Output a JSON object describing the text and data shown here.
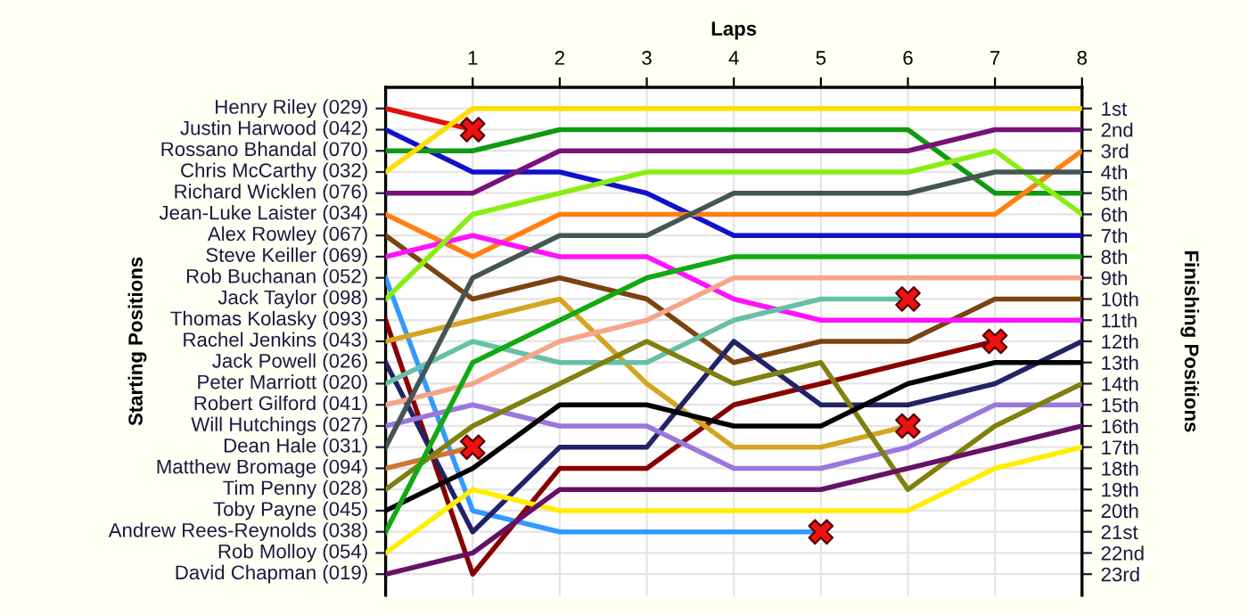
{
  "chart_data": {
    "type": "line",
    "xlabel": "Laps",
    "ylabel": "Finishing Positions",
    "x": [
      0,
      1,
      2,
      3,
      4,
      5,
      6,
      7,
      8
    ],
    "xlim": [
      0,
      8
    ],
    "xticks": [
      1,
      2,
      3,
      4,
      5,
      6,
      7,
      8
    ],
    "ylim": [
      24,
      0
    ],
    "yticks": [
      {
        "value": 1,
        "label": "1st"
      },
      {
        "value": 2,
        "label": "2nd"
      },
      {
        "value": 3,
        "label": "3rd"
      },
      {
        "value": 4,
        "label": "4th"
      },
      {
        "value": 5,
        "label": "5th"
      },
      {
        "value": 6,
        "label": "6th"
      },
      {
        "value": 7,
        "label": "7th"
      },
      {
        "value": 8,
        "label": "8th"
      },
      {
        "value": 9,
        "label": "9th"
      },
      {
        "value": 10,
        "label": "10th"
      },
      {
        "value": 11,
        "label": "11th"
      },
      {
        "value": 12,
        "label": "12th"
      },
      {
        "value": 13,
        "label": "13th"
      },
      {
        "value": 14,
        "label": "14th"
      },
      {
        "value": 15,
        "label": "15th"
      },
      {
        "value": 16,
        "label": "16th"
      },
      {
        "value": 17,
        "label": "17th"
      },
      {
        "value": 18,
        "label": "18th"
      },
      {
        "value": 19,
        "label": "19th"
      },
      {
        "value": 20,
        "label": "20th"
      },
      {
        "value": 21,
        "label": "21st"
      },
      {
        "value": 22,
        "label": "22nd"
      },
      {
        "value": 23,
        "label": "23rd"
      }
    ],
    "annotations": [
      "Starting Positions"
    ],
    "grid": true,
    "series": [
      {
        "name": "Henry Riley (029)",
        "color": "#dd1111",
        "values": [
          1,
          2,
          null,
          null,
          null,
          null,
          null,
          null,
          null
        ]
      },
      {
        "name": "Justin Harwood (042)",
        "color": "#1111cc",
        "values": [
          2,
          4,
          4,
          5,
          7,
          7,
          7,
          7,
          7
        ]
      },
      {
        "name": "Rossano Bhandal (070)",
        "color": "#119911",
        "values": [
          3,
          3,
          2,
          2,
          2,
          2,
          2,
          5,
          5
        ]
      },
      {
        "name": "Chris McCarthy (032)",
        "color": "#ffdd00",
        "values": [
          4,
          1,
          1,
          1,
          1,
          1,
          1,
          1,
          1
        ]
      },
      {
        "name": "Richard Wicklen (076)",
        "color": "#7a117a",
        "values": [
          5,
          5,
          3,
          3,
          3,
          3,
          3,
          2,
          2
        ]
      },
      {
        "name": "Jean-Luke Laister (034)",
        "color": "#ff8011",
        "values": [
          6,
          8,
          6,
          6,
          6,
          6,
          6,
          6,
          3
        ]
      },
      {
        "name": "Alex Rowley (067)",
        "color": "#7a4411",
        "values": [
          7,
          10,
          9,
          10,
          13,
          12,
          12,
          10,
          10
        ]
      },
      {
        "name": "Steve Keiller (069)",
        "color": "#ff11ff",
        "values": [
          8,
          7,
          8,
          8,
          10,
          11,
          11,
          11,
          11
        ]
      },
      {
        "name": "Rob Buchanan (052)",
        "color": "#3399ff",
        "values": [
          9,
          20,
          21,
          21,
          21,
          21,
          null,
          null,
          null
        ]
      },
      {
        "name": "Jack Taylor (098)",
        "color": "#88ee11",
        "values": [
          10,
          6,
          5,
          4,
          4,
          4,
          4,
          3,
          6
        ]
      },
      {
        "name": "Thomas Kolasky (093)",
        "color": "#880000",
        "values": [
          11,
          23,
          18,
          18,
          15,
          14,
          13,
          12,
          null
        ]
      },
      {
        "name": "Rachel Jenkins (043)",
        "color": "#d4a520",
        "values": [
          12,
          11,
          10,
          14,
          17,
          17,
          16,
          null,
          null
        ]
      },
      {
        "name": "Jack Powell (026)",
        "color": "#222266",
        "values": [
          13,
          21,
          17,
          17,
          12,
          15,
          15,
          14,
          12
        ]
      },
      {
        "name": "Peter Marriott (020)",
        "color": "#66c0a8",
        "values": [
          14,
          12,
          13,
          13,
          11,
          10,
          10,
          null,
          null
        ]
      },
      {
        "name": "Robert Gilford (041)",
        "color": "#f4a58a",
        "values": [
          15,
          14,
          12,
          11,
          9,
          9,
          9,
          9,
          9
        ]
      },
      {
        "name": "Will Hutchings (027)",
        "color": "#9977dd",
        "values": [
          16,
          15,
          16,
          16,
          18,
          18,
          17,
          15,
          15
        ]
      },
      {
        "name": "Dean Hale (031)",
        "color": "#445555",
        "values": [
          17,
          9,
          7,
          7,
          5,
          5,
          5,
          4,
          4
        ]
      },
      {
        "name": "Matthew Bromage (094)",
        "color": "#cc7733",
        "values": [
          18,
          17,
          null,
          null,
          null,
          null,
          null,
          null,
          null
        ]
      },
      {
        "name": "Tim Penny (028)",
        "color": "#808011",
        "values": [
          19,
          16,
          14,
          12,
          14,
          13,
          19,
          16,
          14
        ]
      },
      {
        "name": "Toby Payne (045)",
        "color": "#000000",
        "values": [
          20,
          18,
          15,
          15,
          16,
          16,
          14,
          13,
          13
        ]
      },
      {
        "name": "Andrew Rees-Reynolds (038)",
        "color": "#11aa11",
        "values": [
          21,
          13,
          11,
          9,
          8,
          8,
          8,
          8,
          8
        ]
      },
      {
        "name": "Rob Molloy (054)",
        "color": "#ffee00",
        "values": [
          22,
          19,
          20,
          20,
          20,
          20,
          20,
          18,
          17
        ]
      },
      {
        "name": "David Chapman (019)",
        "color": "#661166",
        "values": [
          23,
          22,
          19,
          19,
          19,
          19,
          18,
          17,
          16
        ]
      },
      {
        "type": "scatter",
        "marker": "cross",
        "color": "#ee1111",
        "x": [
          1,
          5,
          7,
          6,
          6,
          1
        ],
        "values": [
          2,
          21,
          12,
          16,
          10,
          17
        ]
      }
    ]
  }
}
